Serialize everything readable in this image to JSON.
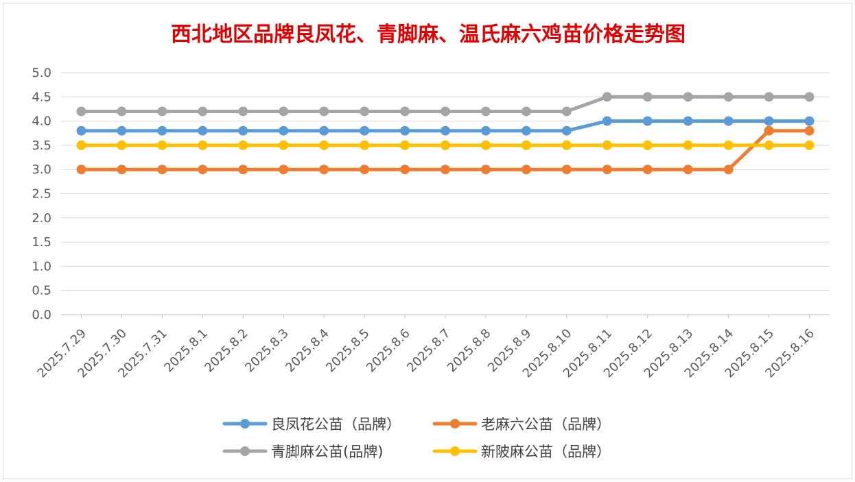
{
  "chart_data": {
    "type": "line",
    "title": "西北地区品牌良凤花、青脚麻、温氏麻六鸡苗价格走势图",
    "title_color": "#e00000",
    "xlabel": "",
    "ylabel": "",
    "ylim": [
      0,
      5
    ],
    "yticks": [
      "0.0",
      "0.5",
      "1.0",
      "1.5",
      "2.0",
      "2.5",
      "3.0",
      "3.5",
      "4.0",
      "4.5",
      "5.0"
    ],
    "grid": true,
    "legend_position": "bottom",
    "categories": [
      "2025.7.29",
      "2025.7.30",
      "2025.7.31",
      "2025.8.1",
      "2025.8.2",
      "2025.8.3",
      "2025.8.4",
      "2025.8.5",
      "2025.8.6",
      "2025.8.7",
      "2025.8.8",
      "2025.8.9",
      "2025.8.10",
      "2025.8.11",
      "2025.8.12",
      "2025.8.13",
      "2025.8.14",
      "2025.8.15",
      "2025.8.16"
    ],
    "series": [
      {
        "name": "良凤花公苗（品牌）",
        "color": "#5b9bd5",
        "values": [
          3.8,
          3.8,
          3.8,
          3.8,
          3.8,
          3.8,
          3.8,
          3.8,
          3.8,
          3.8,
          3.8,
          3.8,
          3.8,
          4.0,
          4.0,
          4.0,
          4.0,
          4.0,
          4.0
        ]
      },
      {
        "name": "老麻六公苗（品牌）",
        "color": "#ed7d31",
        "values": [
          3.0,
          3.0,
          3.0,
          3.0,
          3.0,
          3.0,
          3.0,
          3.0,
          3.0,
          3.0,
          3.0,
          3.0,
          3.0,
          3.0,
          3.0,
          3.0,
          3.0,
          3.8,
          3.8
        ]
      },
      {
        "name": "青脚麻公苗(品牌)",
        "color": "#a5a5a5",
        "values": [
          4.2,
          4.2,
          4.2,
          4.2,
          4.2,
          4.2,
          4.2,
          4.2,
          4.2,
          4.2,
          4.2,
          4.2,
          4.2,
          4.5,
          4.5,
          4.5,
          4.5,
          4.5,
          4.5
        ]
      },
      {
        "name": "新陂麻公苗（品牌）",
        "color": "#ffc000",
        "values": [
          3.5,
          3.5,
          3.5,
          3.5,
          3.5,
          3.5,
          3.5,
          3.5,
          3.5,
          3.5,
          3.5,
          3.5,
          3.5,
          3.5,
          3.5,
          3.5,
          3.5,
          3.5,
          3.5
        ]
      }
    ]
  }
}
